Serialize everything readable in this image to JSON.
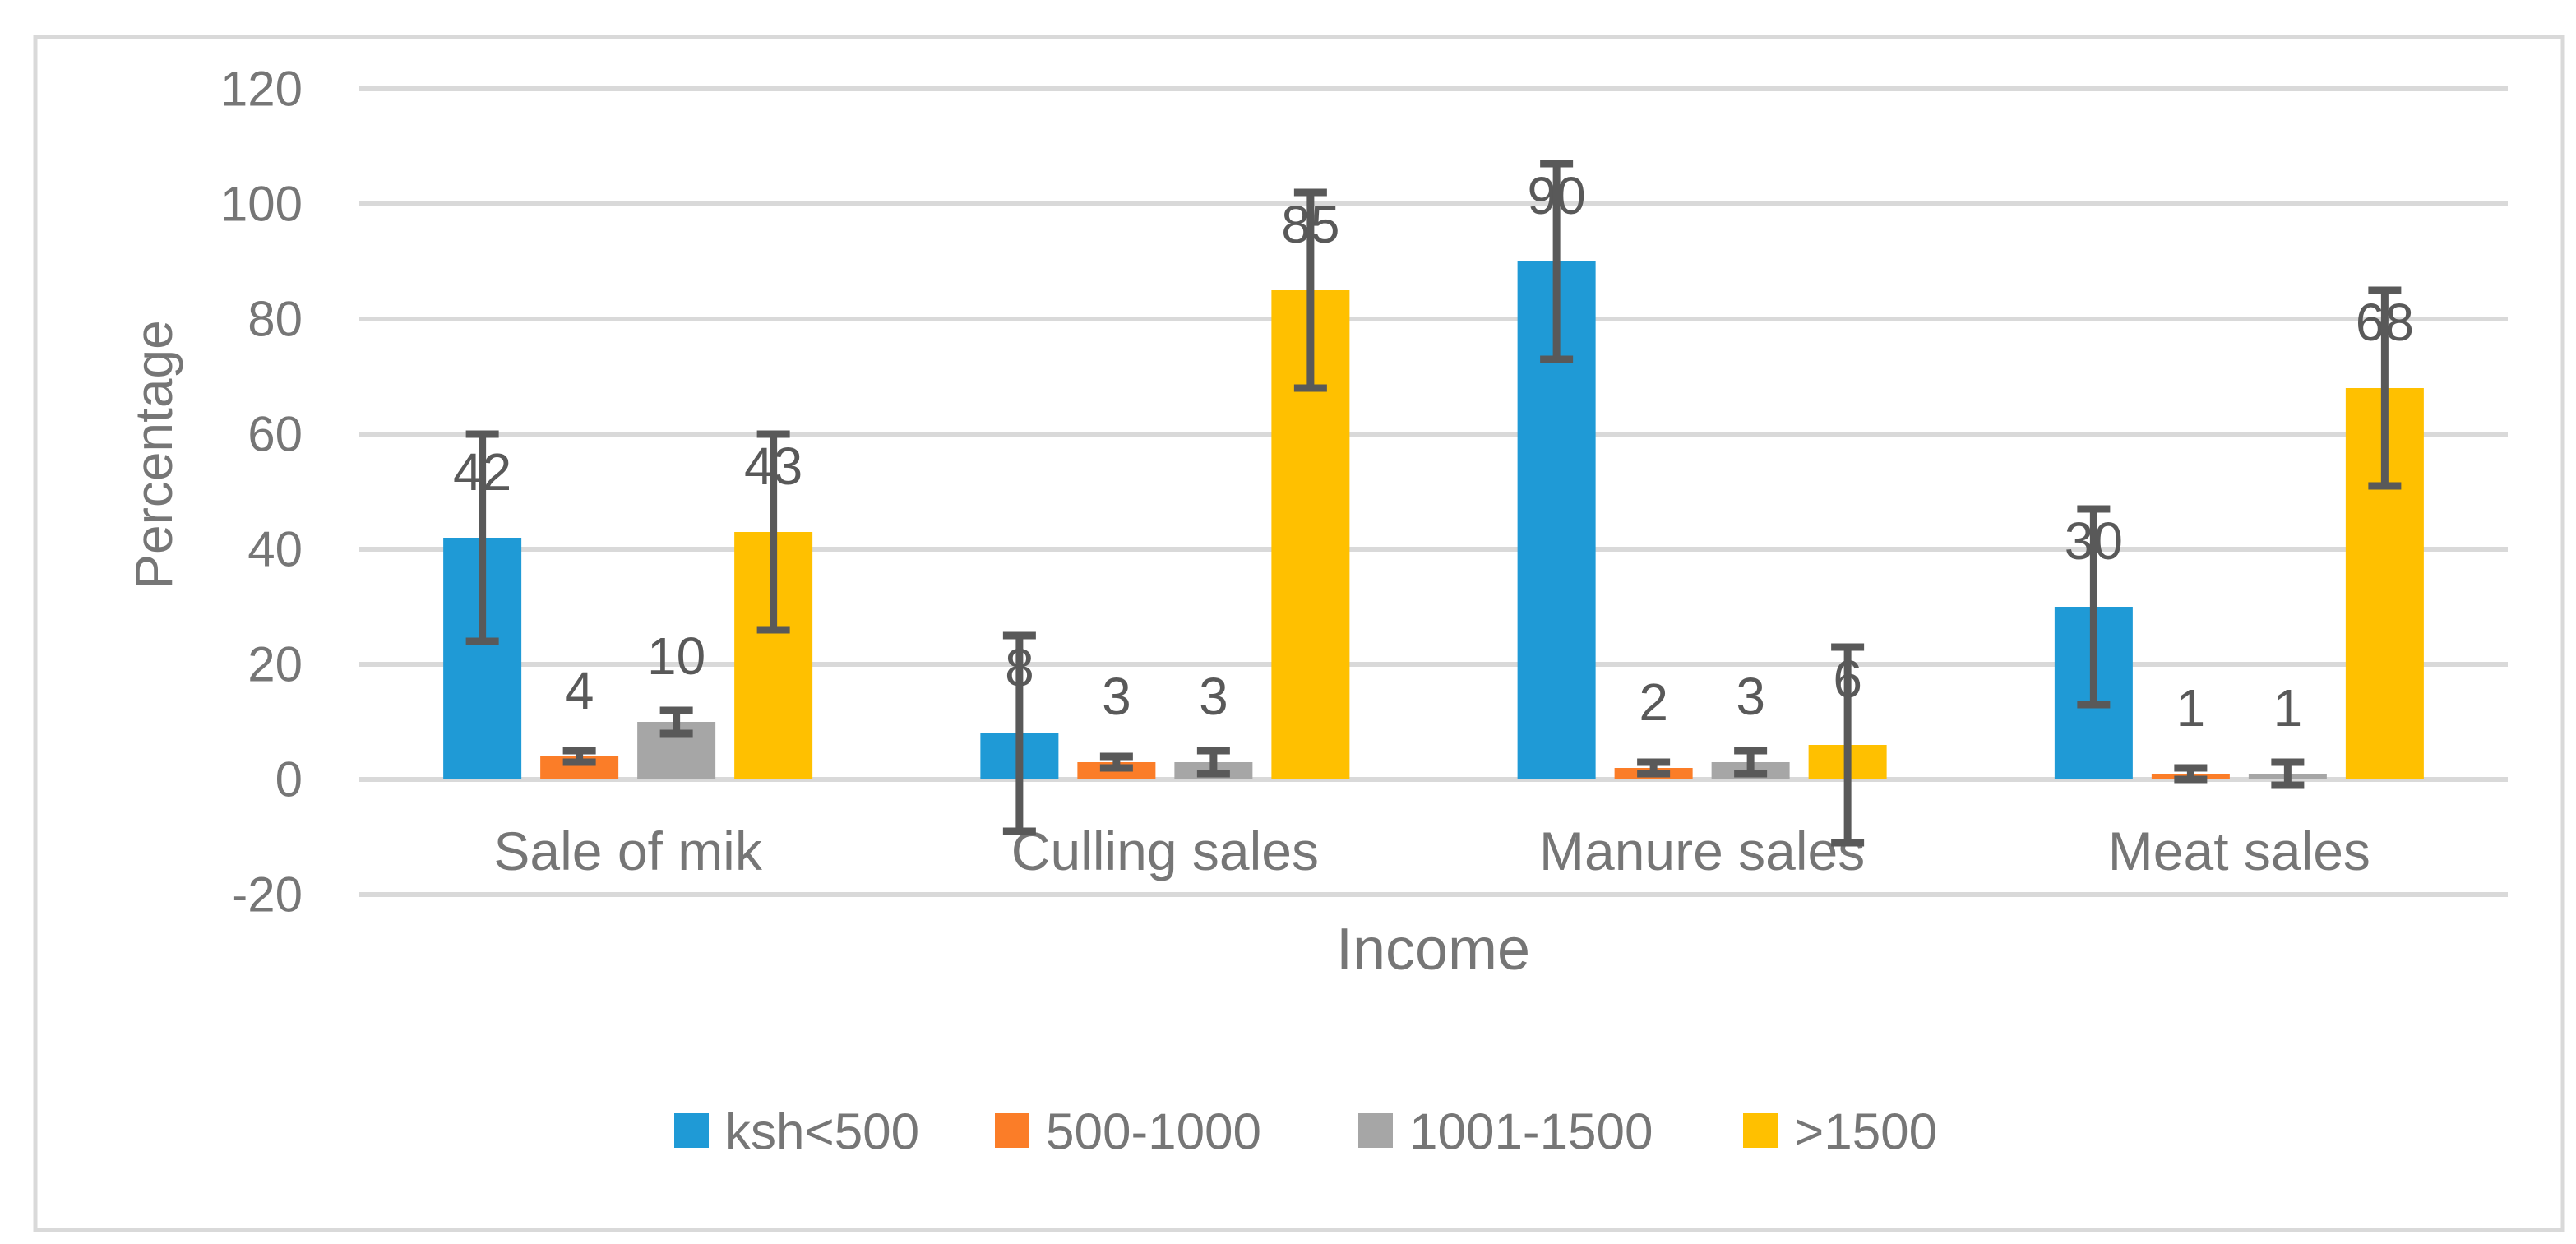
{
  "chart_data": {
    "type": "bar",
    "title": "",
    "xlabel": "Income",
    "ylabel": "Percentage",
    "categories": [
      "Sale of mik",
      "Culling sales",
      "Manure sales",
      "Meat sales"
    ],
    "series": [
      {
        "name": "ksh<500",
        "color": "#1F9AD6",
        "values": [
          42,
          8,
          90,
          30
        ],
        "errors": [
          18,
          17,
          17,
          17
        ]
      },
      {
        "name": "500-1000",
        "color": "#FB7D28",
        "values": [
          4,
          3,
          2,
          1
        ],
        "errors": [
          1,
          1,
          1,
          1
        ]
      },
      {
        "name": "1001-1500",
        "color": "#A6A6A6",
        "values": [
          10,
          3,
          3,
          1
        ],
        "errors": [
          2,
          2,
          2,
          2
        ]
      },
      {
        "name": ">1500",
        "color": "#FFC000",
        "values": [
          43,
          85,
          6,
          68
        ],
        "errors": [
          17,
          17,
          17,
          17
        ]
      }
    ],
    "ylim": [
      -20,
      120
    ],
    "yticks": [
      120,
      100,
      80,
      60,
      40,
      20,
      0,
      -20
    ],
    "grid": true,
    "legend_position": "bottom",
    "data_labels": true
  },
  "colors": {
    "grid": "#D9D9D9",
    "border": "#D9D9D9",
    "axis_text": "#767676",
    "data_label": "#595959",
    "error_bar": "#595959",
    "background": "#FFFFFF"
  }
}
